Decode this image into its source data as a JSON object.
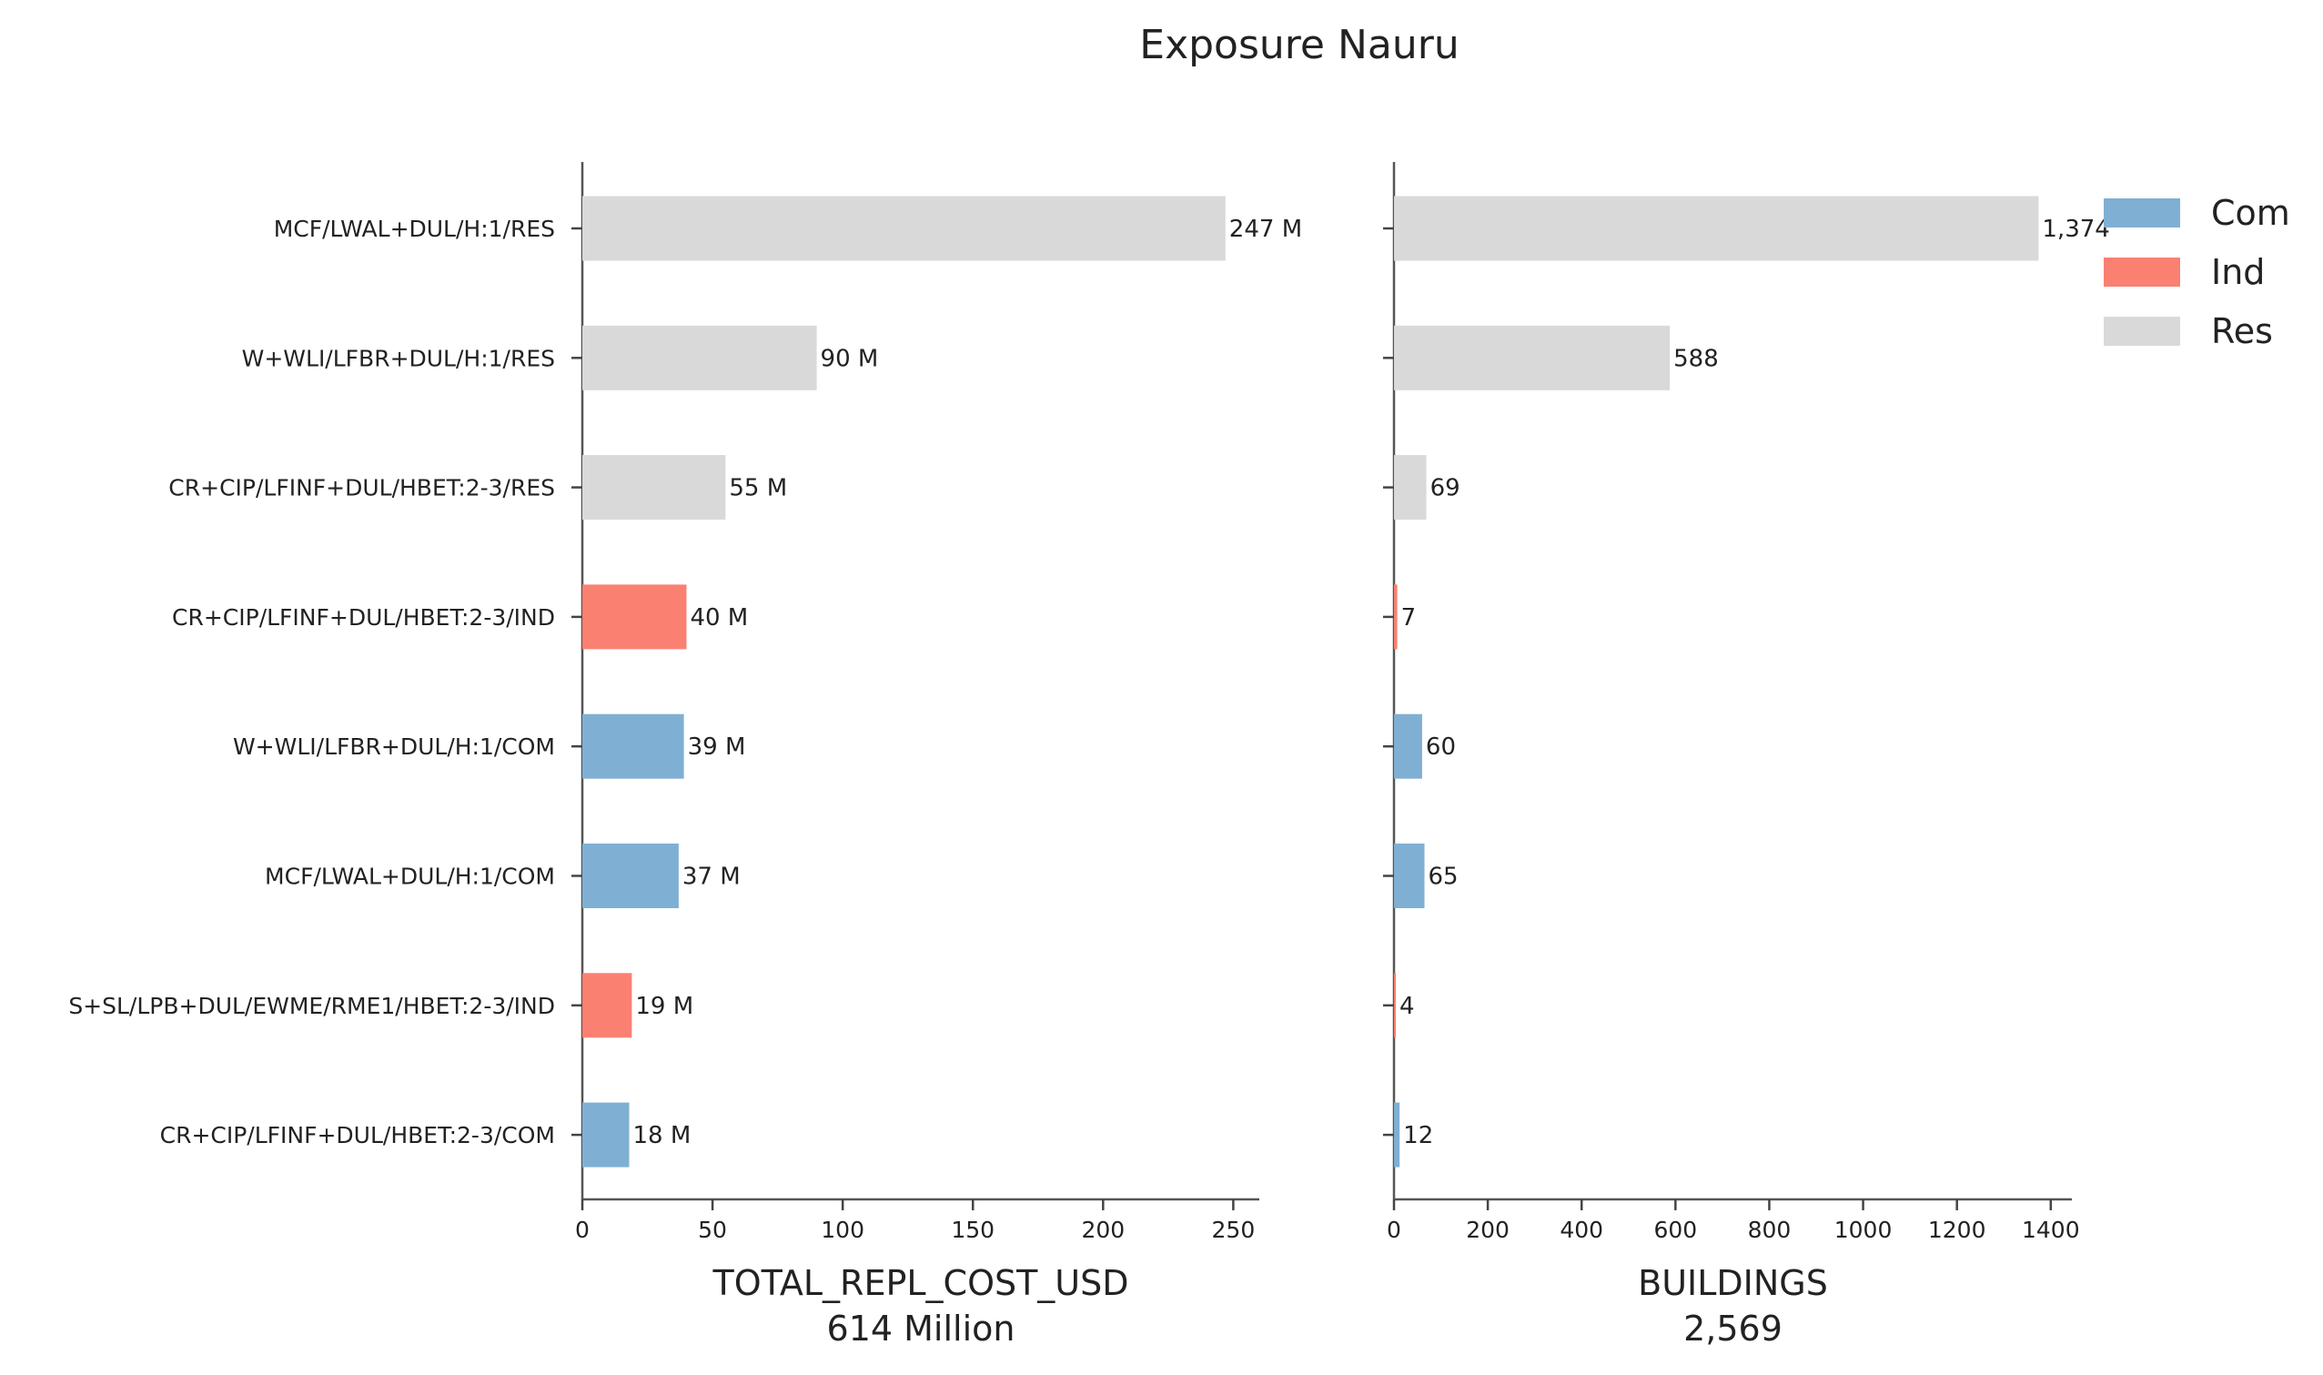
{
  "chart_data": {
    "title": "Exposure Nauru",
    "type": "bar",
    "orientation": "horizontal",
    "categories": [
      "MCF/LWAL+DUL/H:1/RES",
      "W+WLI/LFBR+DUL/H:1/RES",
      "CR+CIP/LFINF+DUL/HBET:2-3/RES",
      "CR+CIP/LFINF+DUL/HBET:2-3/IND",
      "W+WLI/LFBR+DUL/H:1/COM",
      "MCF/LWAL+DUL/H:1/COM",
      "S+SL/LPB+DUL/EWME/RME1/HBET:2-3/IND",
      "CR+CIP/LFINF+DUL/HBET:2-3/COM"
    ],
    "category_groups": [
      "Res",
      "Res",
      "Res",
      "Ind",
      "Com",
      "Com",
      "Ind",
      "Com"
    ],
    "legend": {
      "position": "top-right",
      "entries": [
        {
          "name": "Com",
          "color": "#7fb0d3"
        },
        {
          "name": "Ind",
          "color": "#fa8072"
        },
        {
          "name": "Res",
          "color": "#d9d9d9"
        }
      ]
    },
    "panels": [
      {
        "xlabel": "TOTAL_REPL_COST_USD",
        "xlabel_sub": "614 Million",
        "xlim": [
          0,
          260
        ],
        "xticks": [
          0,
          50,
          100,
          150,
          200,
          250
        ],
        "values": [
          247,
          90,
          55,
          40,
          39,
          37,
          19,
          18
        ],
        "value_labels": [
          "247 M",
          "90 M",
          "55 M",
          "40 M",
          "39 M",
          "37 M",
          "19 M",
          "18 M"
        ]
      },
      {
        "xlabel": "BUILDINGS",
        "xlabel_sub": "2,569",
        "xlim": [
          0,
          1445
        ],
        "xticks": [
          0,
          200,
          400,
          600,
          800,
          1000,
          1200,
          1400
        ],
        "values": [
          1374,
          588,
          69,
          7,
          60,
          65,
          4,
          12
        ],
        "value_labels": [
          "1,374",
          "588",
          "69",
          "7",
          "60",
          "65",
          "4",
          "12"
        ]
      }
    ],
    "grid": false
  }
}
